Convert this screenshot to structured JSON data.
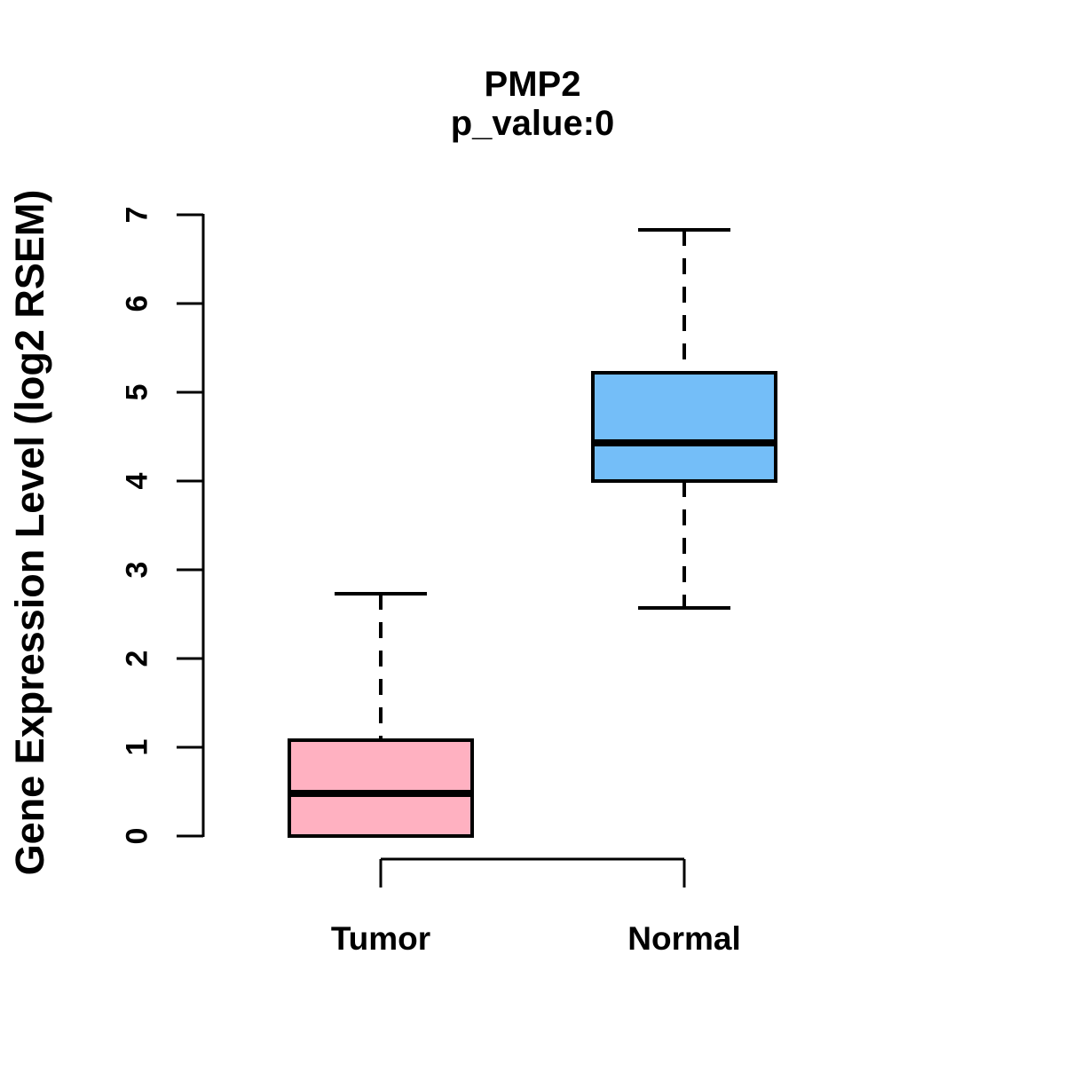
{
  "chart_data": {
    "type": "boxplot",
    "title": "PMP2",
    "subtitle": "p_value:0",
    "ylabel": "Gene Expression Level (log2 RSEM)",
    "xlabel": "",
    "ylim": [
      0,
      7
    ],
    "yticks": [
      "0",
      "1",
      "2",
      "3",
      "4",
      "5",
      "6",
      "7"
    ],
    "grid": false,
    "legend": "none",
    "groups": [
      {
        "label": "Tumor",
        "fill_color": "#FFB1C1",
        "border_color": "#000000",
        "whisker_low": 0,
        "q1": 0,
        "median": 0.48,
        "q3": 1.08,
        "whisker_high": 2.73
      },
      {
        "label": "Normal",
        "fill_color": "#74BEF8",
        "border_color": "#000000",
        "whisker_low": 2.57,
        "q1": 4.0,
        "median": 4.43,
        "q3": 5.22,
        "whisker_high": 6.83
      }
    ],
    "comparison_bracket": {
      "from": "Tumor",
      "to": "Normal"
    }
  },
  "colors": {
    "background": "#FFFFFF",
    "stroke": "#000000",
    "tumor_fill": "#FFB1C1",
    "normal_fill": "#74BEF8"
  }
}
